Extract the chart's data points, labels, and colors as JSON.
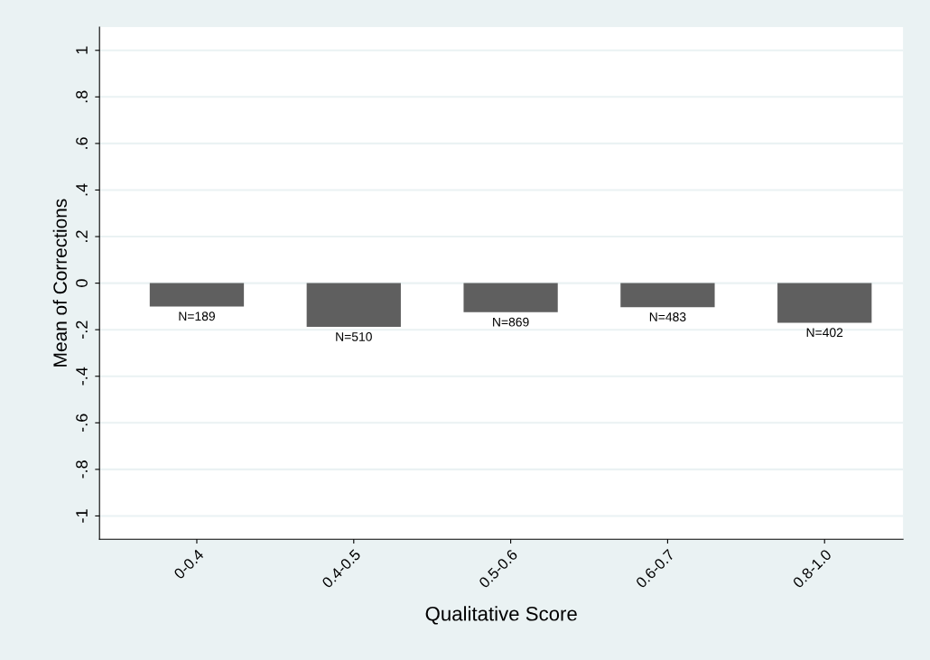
{
  "chart_data": {
    "type": "bar",
    "xlabel": "Qualitative Score",
    "ylabel": "Mean of Corrections",
    "categories": [
      "0-0.4",
      "0.4-0.5",
      "0.5-0.6",
      "0.6-0.7",
      "0.8-1.0"
    ],
    "values": [
      -0.1,
      -0.188,
      -0.125,
      -0.103,
      -0.17
    ],
    "color": "#5f5f5f",
    "ylim": [
      -1.1,
      1.1
    ],
    "yticks": [
      {
        "value": -1,
        "label": "-1"
      },
      {
        "value": -0.8,
        "label": "-.8"
      },
      {
        "value": -0.6,
        "label": "-.6"
      },
      {
        "value": -0.4,
        "label": "-.4"
      },
      {
        "value": -0.2,
        "label": "-.2"
      },
      {
        "value": 0,
        "label": "0"
      },
      {
        "value": 0.2,
        "label": ".2"
      },
      {
        "value": 0.4,
        "label": ".4"
      },
      {
        "value": 0.6,
        "label": ".6"
      },
      {
        "value": 0.8,
        "label": ".8"
      },
      {
        "value": 1,
        "label": "1"
      }
    ],
    "grid": "y",
    "annotations": [
      {
        "text": "N=189",
        "x": "0-0.4",
        "y": -0.1
      },
      {
        "text": "N=510",
        "x": "0.4-0.5",
        "y": -0.188
      },
      {
        "text": "N=869",
        "x": "0.5-0.6",
        "y": -0.125
      },
      {
        "text": "N=483",
        "x": "0.6-0.7",
        "y": -0.103
      },
      {
        "text": "N=402",
        "x": "0.8-1.0",
        "y": -0.17
      }
    ]
  }
}
